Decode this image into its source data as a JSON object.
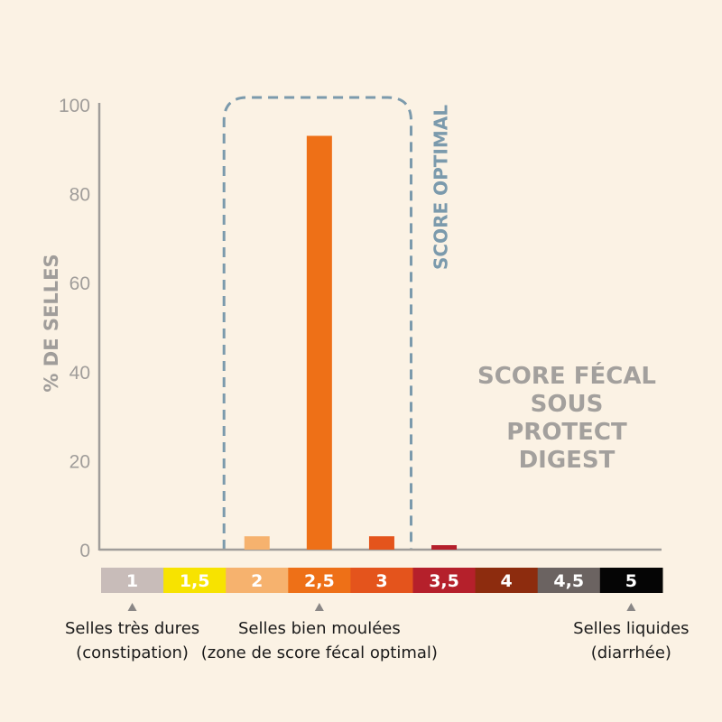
{
  "chart_data": {
    "type": "bar",
    "title_lines": [
      "SCORE FÉCAL",
      "SOUS",
      "PROTECT",
      "DIGEST"
    ],
    "ylabel": "% DE SELLES",
    "ylim": [
      0,
      100
    ],
    "yticks": [
      "0",
      "20",
      "40",
      "60",
      "80",
      "100"
    ],
    "categories": [
      "1",
      "1,5",
      "2",
      "2,5",
      "3",
      "3,5",
      "4",
      "4,5",
      "5"
    ],
    "values": [
      0,
      0,
      3,
      93,
      3,
      1,
      0,
      0,
      0
    ],
    "bar_colors": [
      "#c8bcb9",
      "#f7e300",
      "#f6b26e",
      "#ee7017",
      "#e4541c",
      "#b5202b",
      "#8d2c0e",
      "#6b6361",
      "#050505"
    ],
    "scale_label_colors": [
      "#ffffff",
      "#ffffff",
      "#ffffff",
      "#ffffff",
      "#ffffff",
      "#ffffff",
      "#ffffff",
      "#ffffff",
      "#ffffff"
    ],
    "optimal_zone_label": "SCORE OPTIMAL",
    "optimal_zone_categories": [
      "2",
      "2,5",
      "3"
    ],
    "annotations": [
      {
        "category": "1",
        "lines": [
          "Selles très dures",
          "(constipation)"
        ]
      },
      {
        "category": "2,5",
        "lines": [
          "Selles bien moulées",
          "(zone de score fécal optimal)"
        ]
      },
      {
        "category": "5",
        "lines": [
          "Selles liquides",
          "(diarrhée)"
        ]
      }
    ],
    "grid": false,
    "colors": {
      "background": "#fbf2e4",
      "axis": "#a09d9a",
      "optimal_box": "#7b9aac",
      "title": "#a3a09d"
    }
  }
}
